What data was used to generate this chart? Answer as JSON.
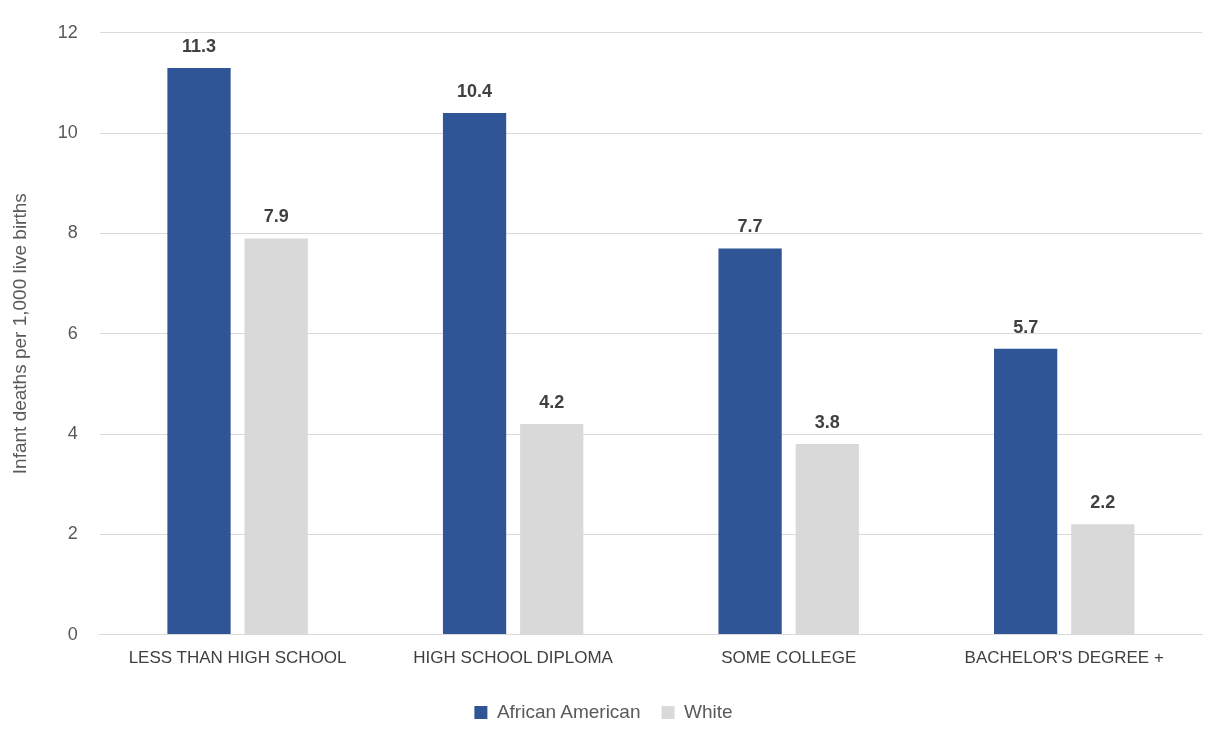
{
  "chart_data": {
    "type": "bar",
    "ylabel": "Infant deaths per 1,000 live births",
    "categories": [
      "LESS THAN HIGH SCHOOL",
      "HIGH SCHOOL DIPLOMA",
      "SOME COLLEGE",
      "BACHELOR'S DEGREE +"
    ],
    "series": [
      {
        "name": "African American",
        "color": "#2f5597",
        "values": [
          11.3,
          10.4,
          7.7,
          5.7
        ]
      },
      {
        "name": "White",
        "color": "#d9d9d9",
        "values": [
          7.9,
          4.2,
          3.8,
          2.2
        ]
      }
    ],
    "ylim": [
      0,
      12
    ],
    "yticks": [
      0,
      2,
      4,
      6,
      8,
      10,
      12
    ],
    "grid": "y",
    "legend": "bottom",
    "data_labels": true
  }
}
